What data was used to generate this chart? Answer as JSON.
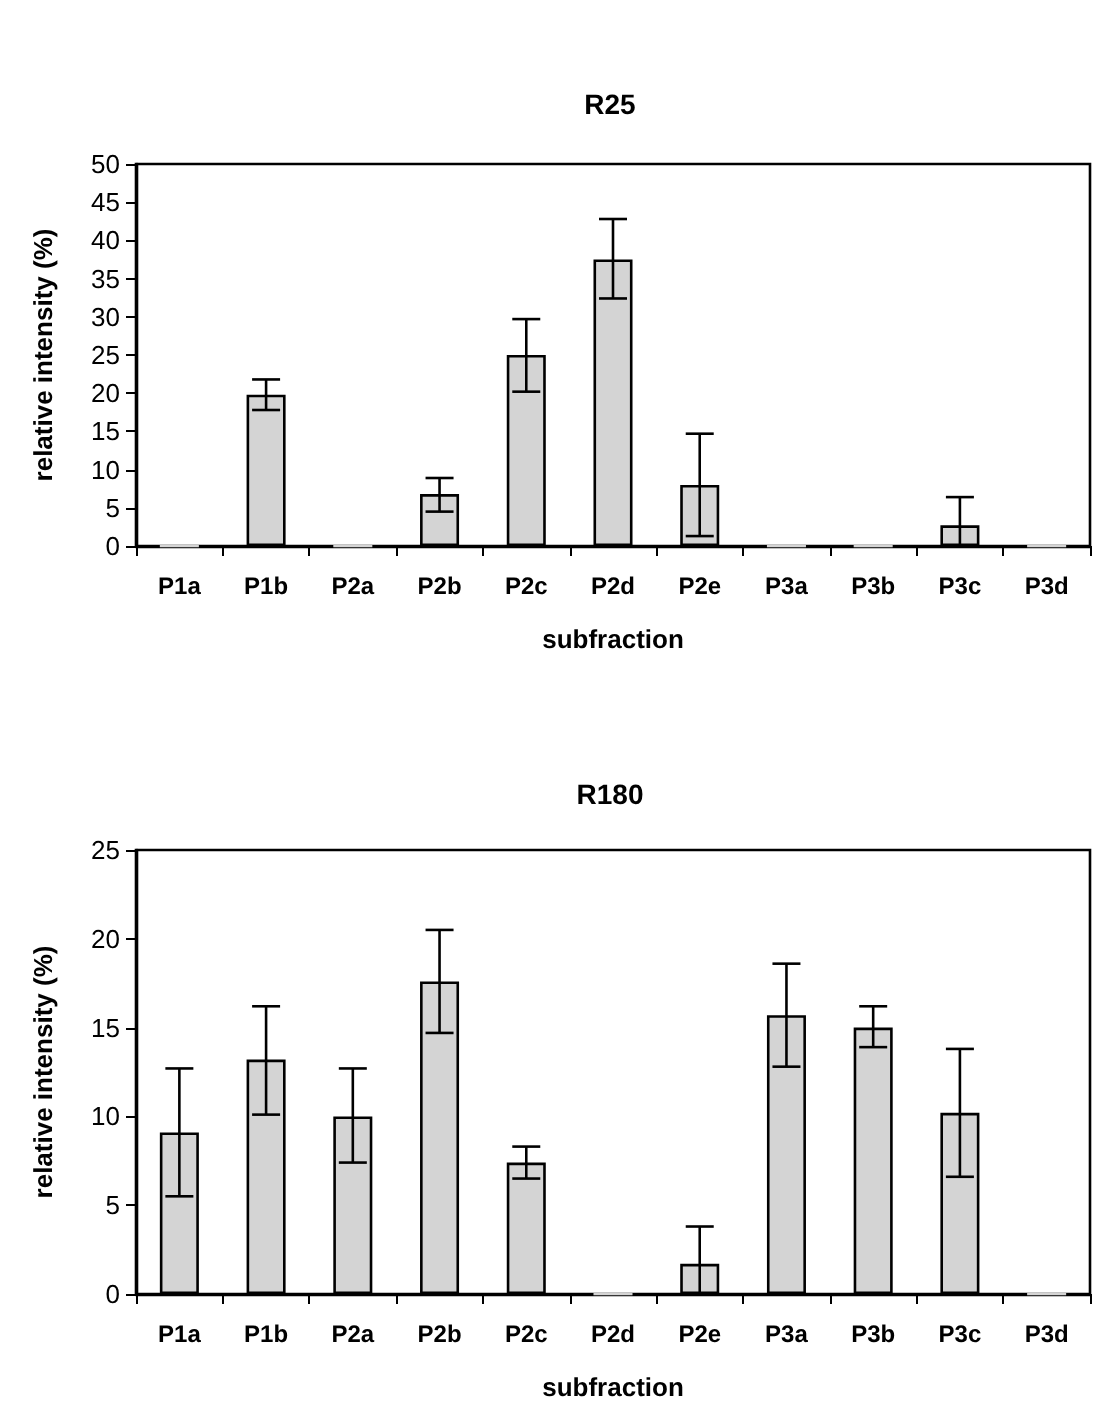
{
  "chart_data": [
    {
      "type": "bar",
      "title": "R25",
      "xlabel": "subfraction",
      "ylabel": "relative intensity (%)",
      "categories": [
        "P1a",
        "P1b",
        "P2a",
        "P2b",
        "P2c",
        "P2d",
        "P2e",
        "P3a",
        "P3b",
        "P3c",
        "P3d"
      ],
      "values": [
        0,
        19.8,
        0,
        6.8,
        25,
        37.5,
        8,
        0,
        0,
        2.7,
        0
      ],
      "errors": [
        null,
        [
          17.8,
          21.8
        ],
        null,
        [
          4.5,
          8.9
        ],
        [
          20.2,
          29.7
        ],
        [
          32.4,
          42.8
        ],
        [
          1.3,
          14.7
        ],
        null,
        null,
        [
          0,
          6.4
        ],
        null
      ],
      "color": "#d4d4d4",
      "ylim": [
        0,
        50
      ],
      "yticks": [
        0,
        5,
        10,
        15,
        20,
        25,
        30,
        35,
        40,
        45,
        50
      ],
      "grid": false
    },
    {
      "type": "bar",
      "title": "R180",
      "xlabel": "subfraction",
      "ylabel": "relative intensity (%)",
      "categories": [
        "P1a",
        "P1b",
        "P2a",
        "P2b",
        "P2c",
        "P2d",
        "P2e",
        "P3a",
        "P3b",
        "P3c",
        "P3d"
      ],
      "values": [
        9.1,
        13.2,
        10,
        17.6,
        7.4,
        0,
        1.7,
        15.7,
        15,
        10.2,
        0
      ],
      "errors": [
        [
          5.5,
          12.7
        ],
        [
          10.1,
          16.2
        ],
        [
          7.4,
          12.7
        ],
        [
          14.7,
          20.5
        ],
        [
          6.5,
          8.3
        ],
        null,
        [
          0,
          3.8
        ],
        [
          12.8,
          18.6
        ],
        [
          13.9,
          16.2
        ],
        [
          6.6,
          13.8
        ],
        null
      ],
      "color": "#d4d4d4",
      "ylim": [
        0,
        25
      ],
      "yticks": [
        0,
        5,
        10,
        15,
        20,
        25
      ],
      "grid": false
    }
  ]
}
